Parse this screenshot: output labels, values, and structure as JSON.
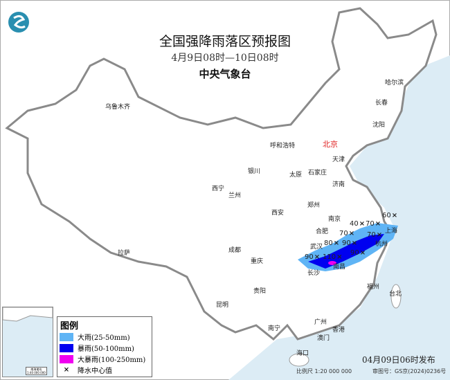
{
  "header": {
    "title": "全国强降雨落区预报图",
    "period": "4月9日08时—10日08时",
    "issuer": "中央气象台",
    "logo": "cma-logo"
  },
  "cities": [
    {
      "name": "乌鲁木齐"
    },
    {
      "name": "呼和浩特"
    },
    {
      "name": "北京",
      "capital": true
    },
    {
      "name": "天津"
    },
    {
      "name": "石家庄"
    },
    {
      "name": "太原"
    },
    {
      "name": "银川"
    },
    {
      "name": "西宁"
    },
    {
      "name": "兰州"
    },
    {
      "name": "济南"
    },
    {
      "name": "郑州"
    },
    {
      "name": "西安"
    },
    {
      "name": "南京"
    },
    {
      "name": "合肥"
    },
    {
      "name": "上海"
    },
    {
      "name": "杭州"
    },
    {
      "name": "武汉"
    },
    {
      "name": "南昌"
    },
    {
      "name": "长沙"
    },
    {
      "name": "成都"
    },
    {
      "name": "重庆"
    },
    {
      "name": "拉萨"
    },
    {
      "name": "贵阳"
    },
    {
      "name": "昆明"
    },
    {
      "name": "南宁"
    },
    {
      "name": "广州"
    },
    {
      "name": "香港"
    },
    {
      "name": "澳门"
    },
    {
      "name": "海口"
    },
    {
      "name": "福州"
    },
    {
      "name": "台北"
    },
    {
      "name": "哈尔滨"
    },
    {
      "name": "长春"
    },
    {
      "name": "沈阳"
    }
  ],
  "rain_centers": [
    40,
    70,
    70,
    60,
    70,
    80,
    90,
    90,
    90,
    110
  ],
  "legend": {
    "title": "图例",
    "items": [
      {
        "label": "大雨(25-50mm)",
        "color": "#5fb4f5"
      },
      {
        "label": "暴雨(50-100mm)",
        "color": "#0000f0"
      },
      {
        "label": "大暴雨(100-250mm)",
        "color": "#f000f0"
      },
      {
        "label": "降水中心值",
        "symbol": "×"
      }
    ]
  },
  "inset": {
    "title": "南海诸岛",
    "scale": "1:40 000 000"
  },
  "footer": {
    "issued": "04月09日06时发布",
    "scale": "比例尺 1:20 000 000",
    "review": "审图号：GS京(2024)0236号"
  },
  "colors": {
    "sea": "#dcecf5",
    "border": "#8a8a8a",
    "capital": "#e02020"
  }
}
